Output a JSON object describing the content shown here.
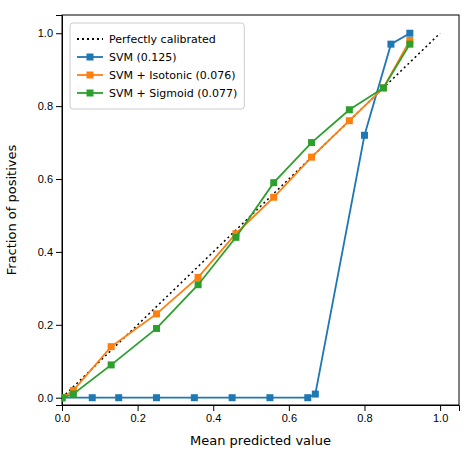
{
  "chart_data": {
    "type": "line",
    "xlabel": "Mean predicted value",
    "ylabel": "Fraction of positives",
    "xlim": [
      0.0,
      1.05
    ],
    "ylim": [
      -0.02,
      1.05
    ],
    "xticks": [
      {
        "value": 0.0,
        "label": "0.0"
      },
      0.2,
      0.4,
      0.6,
      0.8,
      {
        "value": 1.0,
        "label": "1.0"
      }
    ],
    "yticks": [
      {
        "value": 0.0,
        "label": "0.0"
      },
      0.2,
      0.4,
      0.6,
      0.8,
      {
        "value": 1.0,
        "label": "1.0"
      }
    ],
    "legend": "upper left",
    "series": [
      {
        "name": "Perfectly calibrated",
        "color": "black",
        "line_style": "dotted",
        "x": [
          0.0,
          1.0
        ],
        "values": [
          0.0,
          1.0
        ]
      },
      {
        "name": "SVM (0.125)",
        "color": "#1f77b4",
        "marker": "square",
        "x": [
          0.0,
          0.08,
          0.15,
          0.25,
          0.35,
          0.45,
          0.55,
          0.65,
          0.67,
          0.8,
          0.87,
          0.92
        ],
        "values": [
          0.0,
          0.0,
          0.0,
          0.0,
          0.0,
          0.0,
          0.0,
          0.0,
          0.01,
          0.72,
          0.97,
          1.0
        ]
      },
      {
        "name": "SVM + Isotonic (0.076)",
        "color": "#ff7f0e",
        "marker": "square",
        "x": [
          0.0,
          0.03,
          0.13,
          0.25,
          0.36,
          0.46,
          0.56,
          0.66,
          0.76,
          0.85,
          0.92
        ],
        "values": [
          0.0,
          0.02,
          0.14,
          0.23,
          0.33,
          0.45,
          0.55,
          0.66,
          0.76,
          0.85,
          0.98
        ]
      },
      {
        "name": "SVM + Sigmoid (0.077)",
        "color": "#2ca02c",
        "marker": "square",
        "x": [
          0.0,
          0.03,
          0.13,
          0.25,
          0.36,
          0.46,
          0.56,
          0.66,
          0.76,
          0.85,
          0.92
        ],
        "values": [
          0.0,
          0.01,
          0.09,
          0.19,
          0.31,
          0.44,
          0.59,
          0.7,
          0.79,
          0.85,
          0.97
        ]
      }
    ]
  }
}
